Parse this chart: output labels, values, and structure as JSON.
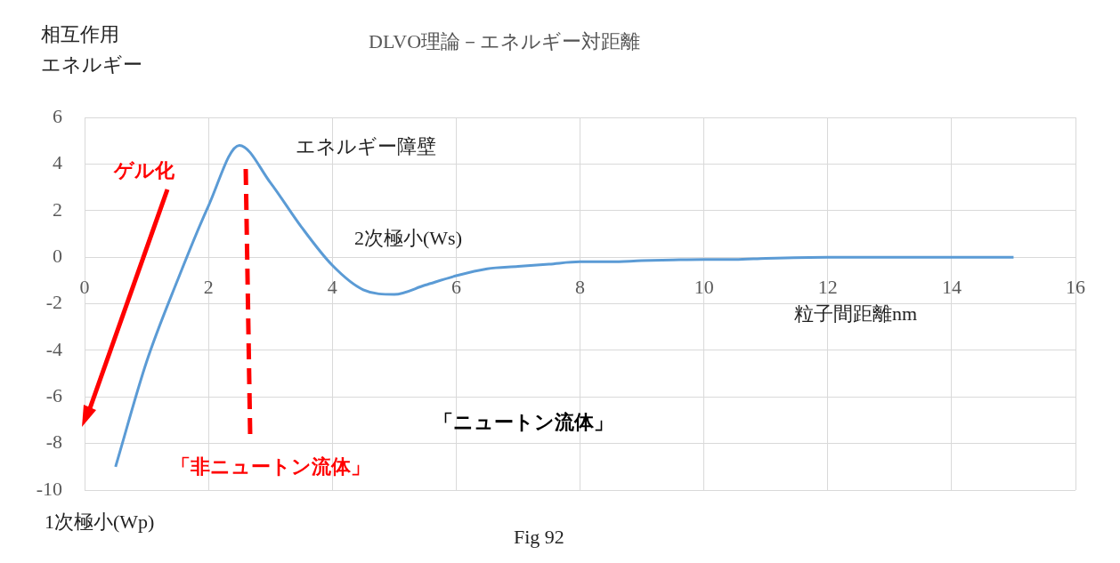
{
  "chart_data": {
    "type": "line",
    "title": "DLVO理論－エネルギー対距離",
    "ylabel": "相互作用エネルギー",
    "xlabel": "粒子間距離nm",
    "x": [
      0.5,
      1,
      1.5,
      2,
      2.5,
      3,
      3.5,
      4,
      4.5,
      5,
      5.5,
      6,
      6.5,
      7,
      7.5,
      8,
      8.5,
      9,
      9.5,
      10,
      10.5,
      11,
      12,
      13,
      14,
      15
    ],
    "series": [
      {
        "color": "#5b9bd5",
        "values": [
          -9,
          -4.5,
          -1,
          2.2,
          4.8,
          3.2,
          1.3,
          -0.35,
          -1.4,
          -1.6,
          -1.2,
          -0.8,
          -0.5,
          -0.4,
          -0.3,
          -0.2,
          -0.2,
          -0.15,
          -0.12,
          -0.1,
          -0.1,
          -0.05,
          0,
          0,
          0,
          0
        ]
      }
    ],
    "xlim": [
      0,
      16
    ],
    "xticks": [
      0,
      2,
      4,
      6,
      8,
      10,
      12,
      14,
      16
    ],
    "ylim": [
      -10,
      6
    ],
    "yticks": [
      -10,
      -8,
      -6,
      -4,
      -2,
      0,
      2,
      4,
      6
    ],
    "grid": true,
    "legend": false,
    "marker": "none",
    "line_style": "solid",
    "annotations": [
      "エネルギー障壁",
      "2次極小(Ws)",
      "1次極小(Wp)",
      "ゲル化",
      "「ニュートン流体」",
      "「非ニュートン流体」",
      "Fig 92"
    ]
  }
}
